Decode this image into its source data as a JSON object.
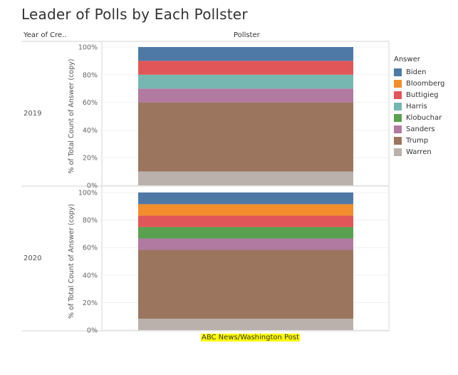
{
  "title": "Leader of Polls by Each  Pollster",
  "row_header": "Year of Cre..",
  "col_header": "Pollster",
  "chart_data": {
    "type": "bar",
    "stacked": true,
    "categories": [
      "ABC News/Washington Post"
    ],
    "ylabel": "% of Total Count of Answer (copy)",
    "yticks": [
      "0%",
      "20%",
      "40%",
      "60%",
      "80%",
      "100%"
    ],
    "ylim": [
      0,
      100
    ],
    "legend_title": "Answer",
    "legend_position": "right",
    "legend": [
      {
        "name": "Biden",
        "color": "#4e79a7"
      },
      {
        "name": "Bloomberg",
        "color": "#f28e2b"
      },
      {
        "name": "Buttigieg",
        "color": "#e15759"
      },
      {
        "name": "Harris",
        "color": "#76b7b2"
      },
      {
        "name": "Klobuchar",
        "color": "#59a14f"
      },
      {
        "name": "Sanders",
        "color": "#b07aa1"
      },
      {
        "name": "Trump",
        "color": "#9c755f"
      },
      {
        "name": "Warren",
        "color": "#bab0ac"
      }
    ],
    "panels": [
      {
        "year": "2019",
        "segments": [
          {
            "name": "Warren",
            "value": 10
          },
          {
            "name": "Trump",
            "value": 50
          },
          {
            "name": "Sanders",
            "value": 10
          },
          {
            "name": "Harris",
            "value": 10
          },
          {
            "name": "Buttigieg",
            "value": 10
          },
          {
            "name": "Biden",
            "value": 10
          }
        ]
      },
      {
        "year": "2020",
        "segments": [
          {
            "name": "Warren",
            "value": 8.3
          },
          {
            "name": "Trump",
            "value": 50
          },
          {
            "name": "Sanders",
            "value": 8.3
          },
          {
            "name": "Klobuchar",
            "value": 8.3
          },
          {
            "name": "Buttigieg",
            "value": 8.3
          },
          {
            "name": "Bloomberg",
            "value": 8.3
          },
          {
            "name": "Biden",
            "value": 8.5
          }
        ]
      }
    ]
  }
}
